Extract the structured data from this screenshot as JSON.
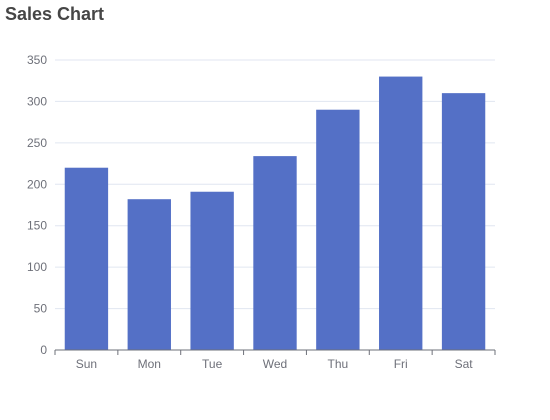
{
  "chart_data": {
    "type": "bar",
    "title": "Sales Chart",
    "categories": [
      "Sun",
      "Mon",
      "Tue",
      "Wed",
      "Thu",
      "Fri",
      "Sat"
    ],
    "values": [
      220,
      182,
      191,
      234,
      290,
      330,
      310
    ],
    "ylim": [
      0,
      350
    ],
    "yticks": [
      0,
      50,
      100,
      150,
      200,
      250,
      300,
      350
    ],
    "xlabel": "",
    "ylabel": "",
    "grid": true,
    "legend": "none",
    "colors": {
      "bar": "#5470c6",
      "grid": "#e0e6f1",
      "axis": "#6e7079",
      "tick_text": "#6e7079",
      "title": "#464646"
    }
  }
}
